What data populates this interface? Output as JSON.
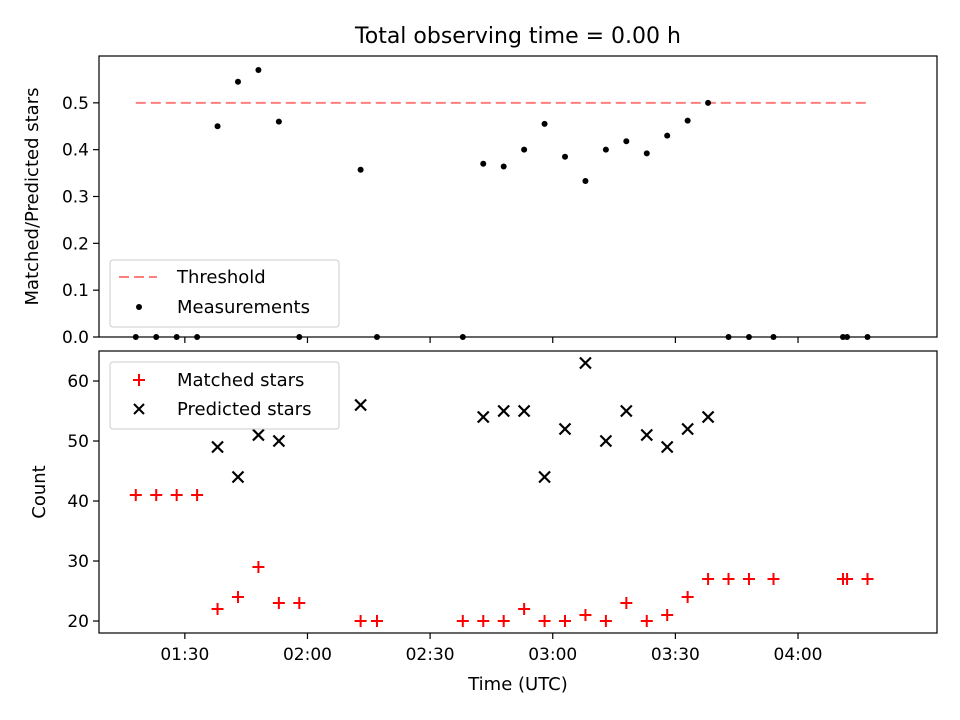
{
  "chart_data": [
    {
      "type": "scatter",
      "title": "Total observing time = 0.00 h",
      "xlabel": "",
      "ylabel": "Matched/Predicted stars",
      "xlim": [
        "01:09",
        "04:34"
      ],
      "ylim": [
        0,
        0.6
      ],
      "yticks": [
        "0.0",
        "0.1",
        "0.2",
        "0.3",
        "0.4",
        "0.5"
      ],
      "x_tick_labels": [],
      "legend_position": "lower-left",
      "threshold": {
        "name": "Threshold",
        "value": 0.5,
        "x_range": [
          "01:18",
          "04:17"
        ],
        "color": "#ff7f7f"
      },
      "series": [
        {
          "name": "Measurements",
          "color": "#000000",
          "marker": "dot",
          "points": [
            [
              "01:18",
              0.0
            ],
            [
              "01:23",
              0.0
            ],
            [
              "01:28",
              0.0
            ],
            [
              "01:33",
              0.0
            ],
            [
              "01:38",
              0.45
            ],
            [
              "01:43",
              0.545
            ],
            [
              "01:48",
              0.57
            ],
            [
              "01:53",
              0.46
            ],
            [
              "01:58",
              0.0
            ],
            [
              "02:13",
              0.357
            ],
            [
              "02:17",
              0.0
            ],
            [
              "02:38",
              0.0
            ],
            [
              "02:43",
              0.37
            ],
            [
              "02:48",
              0.364
            ],
            [
              "02:53",
              0.4
            ],
            [
              "02:58",
              0.455
            ],
            [
              "03:03",
              0.385
            ],
            [
              "03:08",
              0.333
            ],
            [
              "03:13",
              0.4
            ],
            [
              "03:18",
              0.418
            ],
            [
              "03:23",
              0.392
            ],
            [
              "03:28",
              0.43
            ],
            [
              "03:33",
              0.462
            ],
            [
              "03:38",
              0.5
            ],
            [
              "03:43",
              0.0
            ],
            [
              "03:48",
              0.0
            ],
            [
              "03:54",
              0.0
            ],
            [
              "04:11",
              0.0
            ],
            [
              "04:12",
              0.0
            ],
            [
              "04:17",
              0.0
            ]
          ]
        }
      ]
    },
    {
      "type": "scatter",
      "title": "",
      "xlabel": "Time (UTC)",
      "ylabel": "Count",
      "xlim": [
        "01:09",
        "04:34"
      ],
      "ylim": [
        18,
        65
      ],
      "yticks": [
        "20",
        "30",
        "40",
        "50",
        "60"
      ],
      "x_tick_labels": [
        "01:30",
        "02:00",
        "02:30",
        "03:00",
        "03:30",
        "04:00"
      ],
      "legend_position": "upper-left",
      "series": [
        {
          "name": "Matched stars",
          "color": "#ff0000",
          "marker": "plus",
          "points": [
            [
              "01:18",
              41
            ],
            [
              "01:23",
              41
            ],
            [
              "01:28",
              41
            ],
            [
              "01:33",
              41
            ],
            [
              "01:38",
              22
            ],
            [
              "01:43",
              24
            ],
            [
              "01:48",
              29
            ],
            [
              "01:53",
              23
            ],
            [
              "01:58",
              23
            ],
            [
              "02:13",
              20
            ],
            [
              "02:17",
              20
            ],
            [
              "02:38",
              20
            ],
            [
              "02:43",
              20
            ],
            [
              "02:48",
              20
            ],
            [
              "02:53",
              22
            ],
            [
              "02:58",
              20
            ],
            [
              "03:03",
              20
            ],
            [
              "03:08",
              21
            ],
            [
              "03:13",
              20
            ],
            [
              "03:18",
              23
            ],
            [
              "03:23",
              20
            ],
            [
              "03:28",
              21
            ],
            [
              "03:33",
              24
            ],
            [
              "03:38",
              27
            ],
            [
              "03:43",
              27
            ],
            [
              "03:48",
              27
            ],
            [
              "03:54",
              27
            ],
            [
              "04:11",
              27
            ],
            [
              "04:12",
              27
            ],
            [
              "04:17",
              27
            ]
          ]
        },
        {
          "name": "Predicted stars",
          "color": "#000000",
          "marker": "x",
          "points": [
            [
              "01:38",
              49
            ],
            [
              "01:43",
              44
            ],
            [
              "01:48",
              51
            ],
            [
              "01:53",
              50
            ],
            [
              "02:13",
              56
            ],
            [
              "02:43",
              54
            ],
            [
              "02:48",
              55
            ],
            [
              "02:53",
              55
            ],
            [
              "02:58",
              44
            ],
            [
              "03:03",
              52
            ],
            [
              "03:08",
              63
            ],
            [
              "03:13",
              50
            ],
            [
              "03:18",
              55
            ],
            [
              "03:23",
              51
            ],
            [
              "03:28",
              49
            ],
            [
              "03:33",
              52
            ],
            [
              "03:38",
              54
            ]
          ]
        }
      ]
    }
  ]
}
